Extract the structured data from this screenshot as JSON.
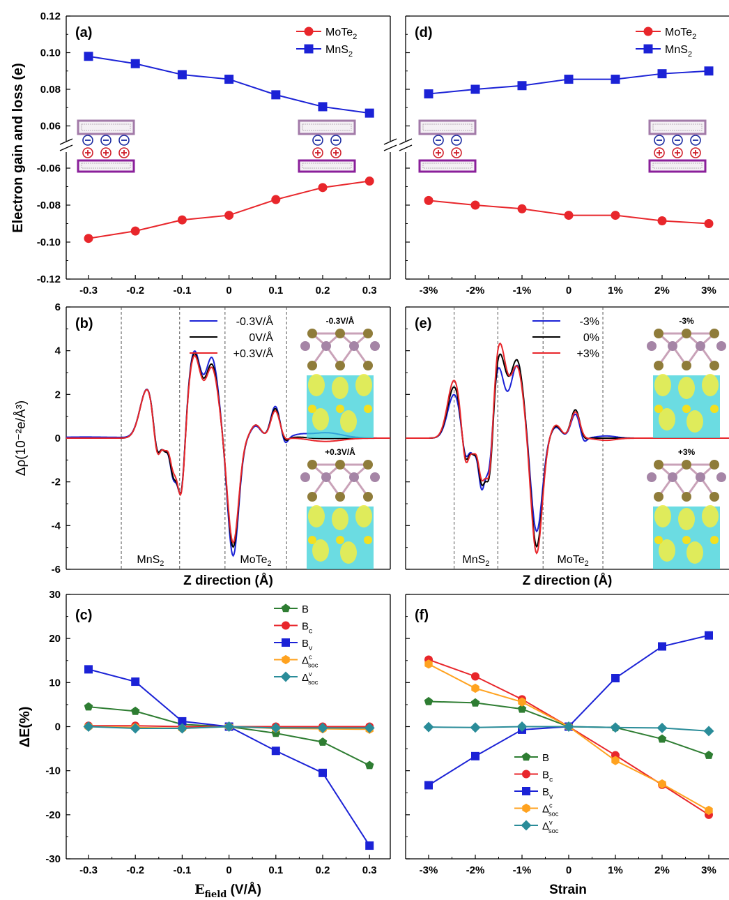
{
  "figure": {
    "ylabel_a": "Electron gain and loss (e)",
    "ylabel_b": "Δρ(10⁻²e/Å³)",
    "ylabel_c": "ΔE(%)",
    "xlabel_b": "Z direction (Å)",
    "xlabel_e": "Z direction (Å)",
    "xlabel_c": "E",
    "xlabel_c_sub": "field",
    "xlabel_c_unit": " (V/Å)",
    "xlabel_f": "Strain"
  },
  "colors": {
    "red": "#e8262b",
    "blue": "#1b22d6",
    "green": "#2e7d32",
    "orange": "#ffa21f",
    "teal": "#2a8c99",
    "black": "#000000",
    "frame_light": "#a27aa8",
    "frame_dark": "#8a1f9a",
    "iso_cyan": "#39d0d8",
    "iso_yellow": "#ecec4c"
  },
  "chart_data": [
    {
      "panel": "(a)",
      "type": "line",
      "categories": [
        "-0.3",
        "-0.2",
        "-0.1",
        "0",
        "0.1",
        "0.2",
        "0.3"
      ],
      "yticks_upper": [
        "0.12",
        "0.10",
        "0.08",
        "0.06"
      ],
      "yticks_lower": [
        "-0.06",
        "-0.08",
        "-0.10",
        "-0.12"
      ],
      "ylim_upper": [
        0.05,
        0.12
      ],
      "ylim_lower": [
        -0.12,
        -0.05
      ],
      "series": [
        {
          "name": "MoTe",
          "sub": "2",
          "color": "red",
          "marker": "circle",
          "values": [
            -0.098,
            -0.094,
            -0.088,
            -0.0855,
            -0.077,
            -0.0705,
            -0.067
          ]
        },
        {
          "name": "MnS",
          "sub": "2",
          "color": "blue",
          "marker": "square",
          "values": [
            0.098,
            0.094,
            0.088,
            0.0855,
            0.077,
            0.0705,
            0.067
          ]
        }
      ]
    },
    {
      "panel": "(d)",
      "type": "line",
      "categories": [
        "-3%",
        "-2%",
        "-1%",
        "0",
        "1%",
        "2%",
        "3%"
      ],
      "ylim_upper": [
        0.05,
        0.12
      ],
      "ylim_lower": [
        -0.12,
        -0.05
      ],
      "series": [
        {
          "name": "MoTe",
          "sub": "2",
          "color": "red",
          "marker": "circle",
          "values": [
            -0.0775,
            -0.08,
            -0.082,
            -0.0855,
            -0.0855,
            -0.0885,
            -0.09
          ]
        },
        {
          "name": "MnS",
          "sub": "2",
          "color": "blue",
          "marker": "square",
          "values": [
            0.0775,
            0.08,
            0.082,
            0.0855,
            0.0855,
            0.0885,
            0.09
          ]
        }
      ]
    },
    {
      "panel": "(b)",
      "type": "line",
      "ylim": [
        -6,
        6
      ],
      "yticks": [
        "6",
        "4",
        "2",
        "0",
        "-2",
        "-4",
        "-6"
      ],
      "region_labels": [
        {
          "text": "MnS",
          "sub": "2"
        },
        {
          "text": "MoTe",
          "sub": "2"
        }
      ],
      "inset_labels": [
        "-0.3V/Å",
        "+0.3V/Å"
      ],
      "series": [
        {
          "name": "-0.3V/Å",
          "color": "blue",
          "peaks": [
            [
              0.06,
              0.05,
              -0.12
            ],
            [
              0.25,
              2.25,
              0.022
            ],
            [
              0.28,
              -1.4,
              0.011
            ],
            [
              0.305,
              -0.55,
              0.008
            ],
            [
              0.33,
              -1.7,
              0.01
            ],
            [
              0.355,
              -2.9,
              0.011
            ],
            [
              0.395,
              3.9,
              0.02
            ],
            [
              0.45,
              3.6,
              0.02
            ],
            [
              0.515,
              -5.4,
              0.017
            ],
            [
              0.585,
              0.55,
              0.016
            ],
            [
              0.645,
              1.45,
              0.014
            ],
            [
              0.675,
              -0.35,
              0.009
            ],
            [
              0.72,
              0.12,
              0.025
            ],
            [
              0.8,
              0.25,
              0.05
            ]
          ]
        },
        {
          "name": "0V/Å",
          "color": "black",
          "peaks": [
            [
              0.25,
              2.25,
              0.022
            ],
            [
              0.28,
              -1.4,
              0.011
            ],
            [
              0.305,
              -0.55,
              0.008
            ],
            [
              0.33,
              -1.6,
              0.01
            ],
            [
              0.355,
              -2.9,
              0.011
            ],
            [
              0.395,
              3.8,
              0.02
            ],
            [
              0.45,
              3.3,
              0.02
            ],
            [
              0.515,
              -5.0,
              0.017
            ],
            [
              0.585,
              0.6,
              0.016
            ],
            [
              0.645,
              1.35,
              0.014
            ],
            [
              0.675,
              -0.2,
              0.009
            ],
            [
              0.72,
              0.05,
              0.025
            ],
            [
              0.8,
              -0.02,
              0.05
            ]
          ]
        },
        {
          "name": "+0.3V/Å",
          "color": "red",
          "peaks": [
            [
              0.25,
              2.25,
              0.022
            ],
            [
              0.28,
              -1.5,
              0.011
            ],
            [
              0.305,
              -0.5,
              0.008
            ],
            [
              0.33,
              -1.35,
              0.01
            ],
            [
              0.355,
              -2.95,
              0.011
            ],
            [
              0.395,
              3.7,
              0.02
            ],
            [
              0.45,
              3.15,
              0.02
            ],
            [
              0.515,
              -4.8,
              0.017
            ],
            [
              0.585,
              0.6,
              0.016
            ],
            [
              0.645,
              1.25,
              0.014
            ],
            [
              0.675,
              -0.1,
              0.009
            ],
            [
              0.72,
              0.02,
              0.025
            ],
            [
              0.8,
              -0.15,
              0.05
            ]
          ]
        }
      ]
    },
    {
      "panel": "(e)",
      "type": "line",
      "ylim": [
        -6,
        6
      ],
      "region_labels": [
        {
          "text": "MnS",
          "sub": "2"
        },
        {
          "text": "MoTe",
          "sub": "2"
        }
      ],
      "inset_labels": [
        "-3%",
        "+3%"
      ],
      "series": [
        {
          "name": "-3%",
          "color": "blue",
          "peaks": [
            [
              0.15,
              2.0,
              0.02
            ],
            [
              0.185,
              -1.2,
              0.011
            ],
            [
              0.21,
              -0.6,
              0.008
            ],
            [
              0.235,
              -2.3,
              0.01
            ],
            [
              0.26,
              -2.6,
              0.011
            ],
            [
              0.285,
              3.3,
              0.02
            ],
            [
              0.345,
              3.3,
              0.02
            ],
            [
              0.405,
              -4.3,
              0.017
            ],
            [
              0.465,
              0.5,
              0.016
            ],
            [
              0.525,
              1.1,
              0.014
            ],
            [
              0.55,
              -0.3,
              0.009
            ],
            [
              0.62,
              0.1,
              0.03
            ]
          ]
        },
        {
          "name": "0%",
          "color": "black",
          "peaks": [
            [
              0.15,
              2.35,
              0.02
            ],
            [
              0.185,
              -1.4,
              0.011
            ],
            [
              0.21,
              -0.6,
              0.008
            ],
            [
              0.235,
              -2.0,
              0.01
            ],
            [
              0.26,
              -2.8,
              0.011
            ],
            [
              0.29,
              3.8,
              0.02
            ],
            [
              0.345,
              3.5,
              0.02
            ],
            [
              0.405,
              -5.0,
              0.017
            ],
            [
              0.465,
              0.55,
              0.016
            ],
            [
              0.525,
              1.3,
              0.014
            ],
            [
              0.55,
              -0.15,
              0.009
            ],
            [
              0.62,
              0.0,
              0.03
            ]
          ]
        },
        {
          "name": "+3%",
          "color": "red",
          "peaks": [
            [
              0.15,
              2.65,
              0.02
            ],
            [
              0.185,
              -1.6,
              0.011
            ],
            [
              0.21,
              -0.55,
              0.008
            ],
            [
              0.235,
              -1.8,
              0.01
            ],
            [
              0.26,
              -2.8,
              0.011
            ],
            [
              0.29,
              4.3,
              0.02
            ],
            [
              0.345,
              3.2,
              0.02
            ],
            [
              0.405,
              -5.3,
              0.017
            ],
            [
              0.465,
              0.6,
              0.016
            ],
            [
              0.525,
              1.2,
              0.014
            ],
            [
              0.55,
              -0.05,
              0.009
            ],
            [
              0.62,
              -0.1,
              0.03
            ]
          ]
        }
      ]
    },
    {
      "panel": "(c)",
      "type": "line",
      "categories": [
        "-0.3",
        "-0.2",
        "-0.1",
        "0",
        "0.1",
        "0.2",
        "0.3"
      ],
      "ylim": [
        -30,
        30
      ],
      "yticks": [
        "30",
        "20",
        "10",
        "0",
        "-10",
        "-20",
        "-30"
      ],
      "series": [
        {
          "name": "B",
          "color": "green",
          "marker": "pentagon",
          "values": [
            4.5,
            3.5,
            0.5,
            0,
            -1.5,
            -3.5,
            -8.8
          ]
        },
        {
          "name": "B",
          "sub": "c",
          "color": "red",
          "marker": "circle",
          "values": [
            0.2,
            0.2,
            0,
            0,
            0,
            0,
            0
          ]
        },
        {
          "name": "B",
          "sub": "v",
          "color": "blue",
          "marker": "square",
          "values": [
            13,
            10.2,
            1.2,
            0,
            -5.5,
            -10.5,
            -27
          ]
        },
        {
          "name": "Δ",
          "sup": "c",
          "sub": "soc",
          "color": "orange",
          "marker": "hexagon",
          "values": [
            0,
            -0.2,
            -0.4,
            0,
            -0.4,
            -0.5,
            -0.6
          ]
        },
        {
          "name": "Δ",
          "sup": "v",
          "sub": "soc",
          "color": "teal",
          "marker": "diamond",
          "values": [
            0,
            -0.4,
            -0.4,
            0,
            -0.3,
            -0.3,
            -0.3
          ]
        }
      ]
    },
    {
      "panel": "(f)",
      "type": "line",
      "categories": [
        "-3%",
        "-2%",
        "-1%",
        "0",
        "1%",
        "2%",
        "3%"
      ],
      "ylim": [
        -30,
        30
      ],
      "series": [
        {
          "name": "B",
          "color": "green",
          "marker": "pentagon",
          "values": [
            5.7,
            5.4,
            4,
            0,
            -0.2,
            -2.8,
            -6.5
          ]
        },
        {
          "name": "B",
          "sub": "c",
          "color": "red",
          "marker": "circle",
          "values": [
            15.2,
            11.4,
            6.2,
            0,
            -6.5,
            -13.2,
            -20
          ]
        },
        {
          "name": "B",
          "sub": "v",
          "color": "blue",
          "marker": "square",
          "values": [
            -13.3,
            -6.7,
            -0.7,
            0,
            11,
            18.2,
            20.7
          ]
        },
        {
          "name": "Δ",
          "sup": "c",
          "sub": "soc",
          "color": "orange",
          "marker": "hexagon",
          "values": [
            14.2,
            8.7,
            5.6,
            0,
            -7.7,
            -13,
            -19
          ]
        },
        {
          "name": "Δ",
          "sup": "v",
          "sub": "soc",
          "color": "teal",
          "marker": "diamond",
          "values": [
            -0.1,
            -0.2,
            0,
            0,
            -0.2,
            -0.3,
            -1
          ]
        }
      ]
    }
  ]
}
